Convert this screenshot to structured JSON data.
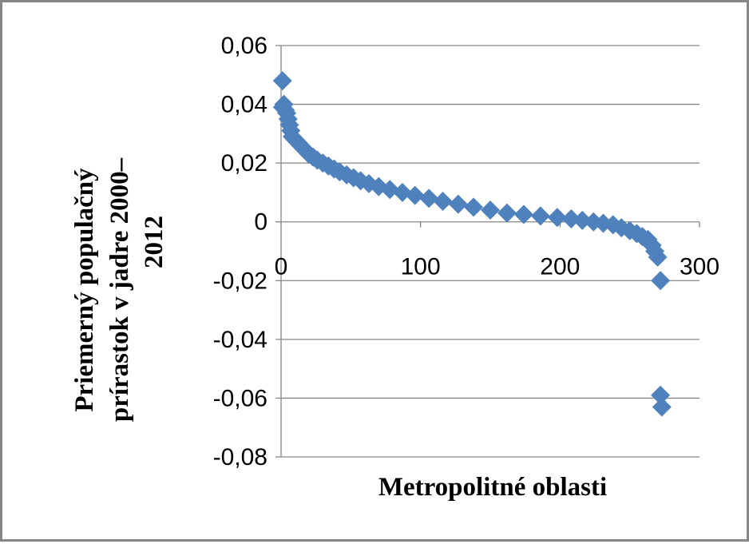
{
  "chart_data": {
    "type": "scatter",
    "title": "",
    "xlabel": "Metropolitné oblasti",
    "ylabel_lines": [
      "Priemerný populačný",
      "prírastok v jadre 2000–",
      "2012"
    ],
    "xlim": [
      0,
      300
    ],
    "ylim": [
      -0.08,
      0.06
    ],
    "x_ticks": [
      "0",
      "100",
      "200",
      "300"
    ],
    "y_ticks": [
      "0,06",
      "0,04",
      "0,02",
      "0",
      "-0,02",
      "-0,04",
      "-0,06",
      "-0,08"
    ],
    "grid": "horizontal",
    "legend": "none",
    "marker": "diamond",
    "series": [
      {
        "color": "#4F81BD",
        "points": [
          [
            1,
            0.048
          ],
          [
            1,
            0.039
          ],
          [
            2,
            0.04
          ],
          [
            3,
            0.038
          ],
          [
            4,
            0.037
          ],
          [
            5,
            0.035
          ],
          [
            6,
            0.033
          ],
          [
            7,
            0.031
          ],
          [
            8,
            0.029
          ],
          [
            10,
            0.028
          ],
          [
            12,
            0.027
          ],
          [
            14,
            0.026
          ],
          [
            16,
            0.025
          ],
          [
            18,
            0.024
          ],
          [
            20,
            0.023
          ],
          [
            23,
            0.022
          ],
          [
            26,
            0.021
          ],
          [
            30,
            0.02
          ],
          [
            34,
            0.019
          ],
          [
            38,
            0.018
          ],
          [
            42,
            0.017
          ],
          [
            47,
            0.016
          ],
          [
            52,
            0.015
          ],
          [
            57,
            0.014
          ],
          [
            63,
            0.013
          ],
          [
            70,
            0.012
          ],
          [
            78,
            0.011
          ],
          [
            87,
            0.01
          ],
          [
            96,
            0.009
          ],
          [
            106,
            0.008
          ],
          [
            116,
            0.007
          ],
          [
            127,
            0.006
          ],
          [
            138,
            0.005
          ],
          [
            150,
            0.004
          ],
          [
            162,
            0.003
          ],
          [
            174,
            0.0025
          ],
          [
            186,
            0.002
          ],
          [
            198,
            0.0015
          ],
          [
            208,
            0.001
          ],
          [
            216,
            0.0005
          ],
          [
            224,
            0.0
          ],
          [
            231,
            -0.0005
          ],
          [
            238,
            -0.001
          ],
          [
            244,
            -0.002
          ],
          [
            250,
            -0.003
          ],
          [
            255,
            -0.004
          ],
          [
            259,
            -0.005
          ],
          [
            263,
            -0.006
          ],
          [
            266,
            -0.008
          ],
          [
            268,
            -0.01
          ],
          [
            270,
            -0.012
          ],
          [
            272,
            -0.02
          ],
          [
            272,
            -0.059
          ],
          [
            273,
            -0.063
          ]
        ]
      }
    ]
  }
}
